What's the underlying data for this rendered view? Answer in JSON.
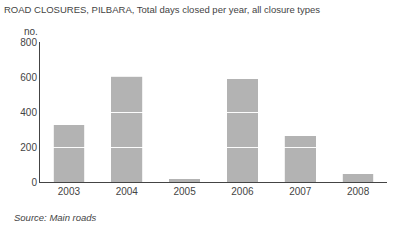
{
  "chart_data": {
    "type": "bar",
    "stacked": true,
    "title": "ROAD CLOSURES, PILBARA, Total days closed per year, all closure types",
    "ylabel": "no.",
    "annotations": [
      "Source: Main roads"
    ],
    "categories": [
      "2003",
      "2004",
      "2005",
      "2006",
      "2007",
      "2008"
    ],
    "series": [
      {
        "values": [
          200,
          200,
          20,
          200,
          200,
          50
        ]
      },
      {
        "values": [
          130,
          200,
          0,
          200,
          65,
          0
        ]
      },
      {
        "values": [
          0,
          205,
          0,
          190,
          0,
          0
        ]
      }
    ],
    "color": "#b3b3b3",
    "ylim": [
      0,
      800
    ],
    "yticks": [
      0,
      200,
      400,
      600,
      800
    ],
    "grid": false
  }
}
